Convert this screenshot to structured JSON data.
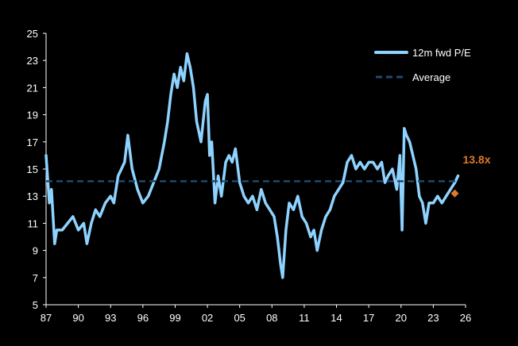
{
  "chart_data": {
    "type": "line",
    "title": "",
    "xlabel": "",
    "ylabel": "",
    "xlim": [
      1987,
      2026
    ],
    "ylim": [
      5,
      25
    ],
    "x_tick_labels": [
      "87",
      "90",
      "93",
      "96",
      "99",
      "02",
      "05",
      "08",
      "11",
      "14",
      "17",
      "20",
      "23",
      "26"
    ],
    "y_tick_labels": [
      "5",
      "7",
      "9",
      "11",
      "13",
      "15",
      "17",
      "19",
      "21",
      "23",
      "25"
    ],
    "grid": false,
    "legend_position": "top-right",
    "series": [
      {
        "name": "12m fwd P/E",
        "color": "#8ed3ff",
        "x": [
          1987.0,
          1987.3,
          1987.5,
          1987.8,
          1988.0,
          1988.5,
          1989.0,
          1989.5,
          1990.0,
          1990.5,
          1990.8,
          1991.2,
          1991.6,
          1992.0,
          1992.5,
          1993.0,
          1993.3,
          1993.7,
          1994.0,
          1994.3,
          1994.6,
          1995.0,
          1995.5,
          1996.0,
          1996.5,
          1997.0,
          1997.5,
          1998.0,
          1998.3,
          1998.6,
          1998.9,
          1999.2,
          1999.5,
          1999.8,
          2000.1,
          2000.4,
          2000.7,
          2001.0,
          2001.4,
          2001.8,
          2002.0,
          2002.2,
          2002.4,
          2002.7,
          2003.0,
          2003.3,
          2003.7,
          2004.0,
          2004.3,
          2004.6,
          2005.0,
          2005.4,
          2005.8,
          2006.2,
          2006.6,
          2007.0,
          2007.4,
          2007.8,
          2008.2,
          2008.5,
          2008.8,
          2009.0,
          2009.3,
          2009.6,
          2010.0,
          2010.4,
          2010.8,
          2011.2,
          2011.6,
          2011.9,
          2012.2,
          2012.6,
          2013.0,
          2013.4,
          2013.8,
          2014.2,
          2014.6,
          2015.0,
          2015.4,
          2015.8,
          2016.2,
          2016.6,
          2017.0,
          2017.4,
          2017.8,
          2018.2,
          2018.5,
          2018.8,
          2019.2,
          2019.6,
          2019.9,
          2020.1,
          2020.3,
          2020.5,
          2020.8,
          2021.1,
          2021.4,
          2021.7,
          2022.0,
          2022.3,
          2022.6,
          2023.0,
          2023.4,
          2023.8,
          2024.2,
          2024.6,
          2025.0,
          2025.3
        ],
        "values": [
          16.0,
          12.5,
          13.5,
          9.5,
          10.5,
          10.5,
          11.0,
          11.5,
          10.5,
          11.0,
          9.5,
          11.0,
          12.0,
          11.5,
          12.5,
          13.0,
          12.5,
          14.5,
          15.0,
          15.5,
          17.5,
          15.0,
          13.5,
          12.5,
          13.0,
          14.0,
          15.0,
          17.0,
          18.5,
          20.5,
          22.0,
          21.0,
          22.5,
          21.5,
          23.5,
          22.5,
          21.0,
          18.5,
          17.0,
          20.0,
          20.5,
          16.0,
          17.0,
          12.5,
          14.5,
          13.0,
          15.5,
          16.0,
          15.5,
          16.5,
          14.0,
          13.0,
          12.5,
          13.0,
          12.0,
          13.5,
          12.5,
          12.0,
          11.5,
          10.0,
          8.0,
          7.0,
          10.5,
          12.5,
          12.0,
          13.0,
          11.5,
          11.0,
          10.0,
          10.5,
          9.0,
          10.5,
          11.5,
          12.0,
          13.0,
          13.5,
          14.0,
          15.5,
          16.0,
          15.0,
          15.5,
          15.0,
          15.5,
          15.5,
          15.0,
          15.5,
          14.0,
          14.5,
          15.0,
          13.5,
          16.0,
          10.5,
          18.0,
          17.5,
          17.0,
          16.0,
          15.0,
          13.0,
          12.5,
          11.0,
          12.5,
          12.5,
          13.0,
          12.5,
          13.0,
          13.5,
          14.0,
          14.5
        ]
      },
      {
        "name": "Average",
        "color": "#1f4a6e",
        "x": [
          1987.0,
          2025.3
        ],
        "values": [
          14.1,
          14.1
        ]
      }
    ],
    "annotations": [
      {
        "text": "13.8x",
        "x": 2025.0,
        "y": 13.2,
        "color": "#e0782a"
      }
    ]
  }
}
